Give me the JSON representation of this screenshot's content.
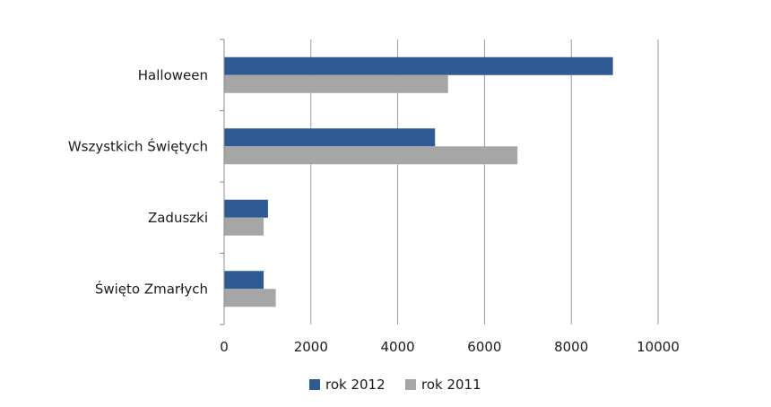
{
  "chart_data": {
    "type": "bar",
    "orientation": "horizontal",
    "categories": [
      "Halloween",
      "Wszystkich Świętych",
      "Zaduszki",
      "Święto Zmarłych"
    ],
    "series": [
      {
        "name": "rok 2012",
        "values": [
          8950,
          4850,
          1000,
          900
        ],
        "color": "#2f5b94"
      },
      {
        "name": "rok 2011",
        "values": [
          5150,
          6750,
          900,
          1180
        ],
        "color": "#a6a6a6"
      }
    ],
    "xlim": [
      0,
      10000
    ],
    "xticks": [
      0,
      2000,
      4000,
      6000,
      8000,
      10000
    ],
    "xtick_labels": [
      "0",
      "2000",
      "4000",
      "6000",
      "8000",
      "10000"
    ],
    "title": "",
    "xlabel": "",
    "ylabel": "",
    "grid": "vertical",
    "legend_position": "bottom"
  }
}
